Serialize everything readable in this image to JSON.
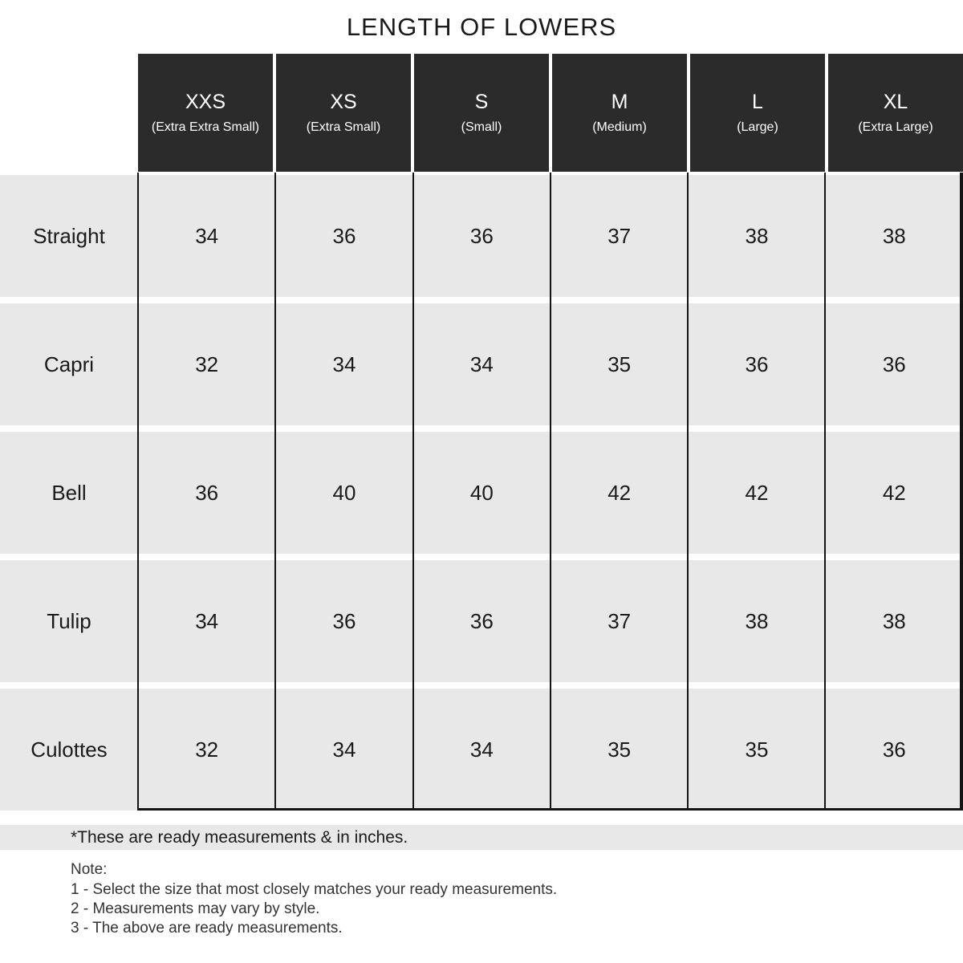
{
  "title": "LENGTH OF LOWERS",
  "chart_data": {
    "type": "table",
    "title": "LENGTH OF LOWERS",
    "unit": "inches",
    "columns": [
      {
        "code": "XXS",
        "label": "(Extra Extra Small)"
      },
      {
        "code": "XS",
        "label": "(Extra Small)"
      },
      {
        "code": "S",
        "label": "(Small)"
      },
      {
        "code": "M",
        "label": "(Medium)"
      },
      {
        "code": "L",
        "label": "(Large)"
      },
      {
        "code": "XL",
        "label": "(Extra Large)"
      }
    ],
    "rows": [
      {
        "label": "Straight",
        "values": [
          "34",
          "36",
          "36",
          "37",
          "38",
          "38"
        ]
      },
      {
        "label": "Capri",
        "values": [
          "32",
          "34",
          "34",
          "35",
          "36",
          "36"
        ]
      },
      {
        "label": "Bell",
        "values": [
          "36",
          "40",
          "40",
          "42",
          "42",
          "42"
        ]
      },
      {
        "label": "Tulip",
        "values": [
          "34",
          "36",
          "36",
          "37",
          "38",
          "38"
        ]
      },
      {
        "label": "Culottes",
        "values": [
          "32",
          "34",
          "34",
          "35",
          "35",
          "36"
        ]
      }
    ]
  },
  "footnote": "*These are ready measurements & in inches.",
  "notes": {
    "heading": "Note:",
    "items": [
      "1 - Select the size that most closely matches your ready measurements.",
      "2 - Measurements may vary by style.",
      "3 - The above are ready measurements."
    ]
  },
  "colors": {
    "header_bg": "#2b2b2b",
    "header_text": "#ffffff",
    "row_bg": "#e8e8e8",
    "grid_line": "#141414",
    "text": "#1a1a1a"
  }
}
